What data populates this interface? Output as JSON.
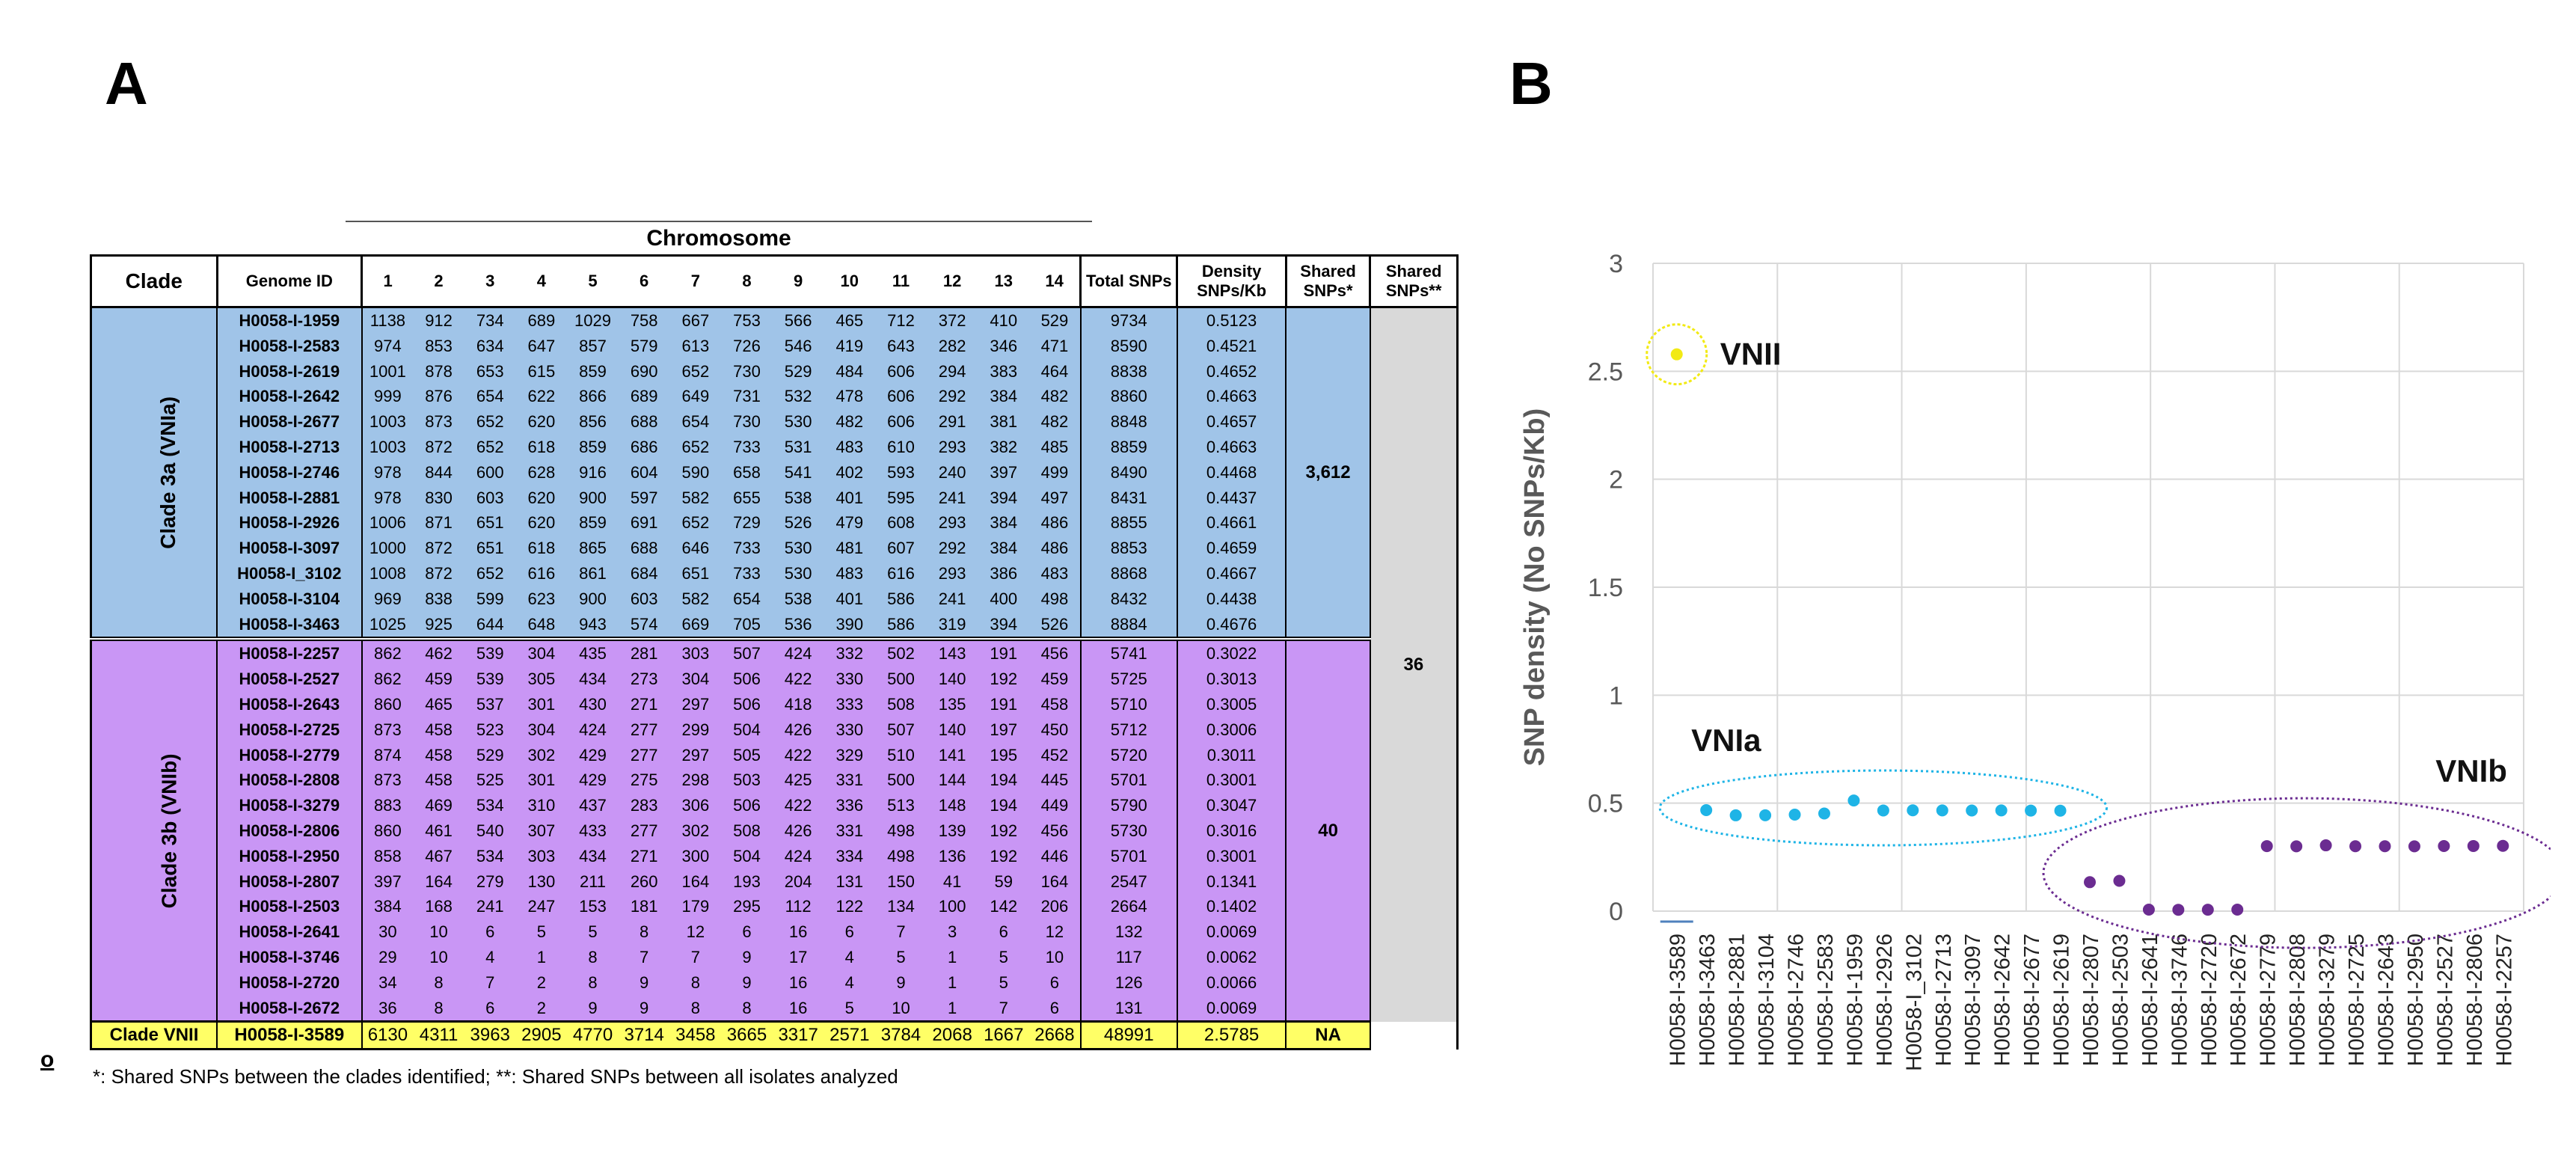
{
  "panels": {
    "a_label": "A",
    "b_label": "B",
    "stray_mark": "o"
  },
  "table": {
    "chromosome_title": "Chromosome",
    "headers": {
      "clade": "Clade",
      "genome_id": "Genome ID",
      "chromosomes": [
        "1",
        "2",
        "3",
        "4",
        "5",
        "6",
        "7",
        "8",
        "9",
        "10",
        "11",
        "12",
        "13",
        "14"
      ],
      "total": "Total SNPs",
      "density_1": "Density",
      "density_2": "SNPs/Kb",
      "shared_clade_1": "Shared",
      "shared_clade_2": "SNPs*",
      "shared_all_1": "Shared",
      "shared_all_2": "SNPs**"
    },
    "clade_a": {
      "name": "Clade 3a (VNIa)",
      "shared": "3,612",
      "rows": [
        {
          "id": "H0058-I-1959",
          "c": [
            "1138",
            "912",
            "734",
            "689",
            "1029",
            "758",
            "667",
            "753",
            "566",
            "465",
            "712",
            "372",
            "410",
            "529"
          ],
          "total": "9734",
          "density": "0.5123"
        },
        {
          "id": "H0058-I-2583",
          "c": [
            "974",
            "853",
            "634",
            "647",
            "857",
            "579",
            "613",
            "726",
            "546",
            "419",
            "643",
            "282",
            "346",
            "471"
          ],
          "total": "8590",
          "density": "0.4521"
        },
        {
          "id": "H0058-I-2619",
          "c": [
            "1001",
            "878",
            "653",
            "615",
            "859",
            "690",
            "652",
            "730",
            "529",
            "484",
            "606",
            "294",
            "383",
            "464"
          ],
          "total": "8838",
          "density": "0.4652"
        },
        {
          "id": "H0058-I-2642",
          "c": [
            "999",
            "876",
            "654",
            "622",
            "866",
            "689",
            "649",
            "731",
            "532",
            "478",
            "606",
            "292",
            "384",
            "482"
          ],
          "total": "8860",
          "density": "0.4663"
        },
        {
          "id": "H0058-I-2677",
          "c": [
            "1003",
            "873",
            "652",
            "620",
            "856",
            "688",
            "654",
            "730",
            "530",
            "482",
            "606",
            "291",
            "381",
            "482"
          ],
          "total": "8848",
          "density": "0.4657"
        },
        {
          "id": "H0058-I-2713",
          "c": [
            "1003",
            "872",
            "652",
            "618",
            "859",
            "686",
            "652",
            "733",
            "531",
            "483",
            "610",
            "293",
            "382",
            "485"
          ],
          "total": "8859",
          "density": "0.4663"
        },
        {
          "id": "H0058-I-2746",
          "c": [
            "978",
            "844",
            "600",
            "628",
            "916",
            "604",
            "590",
            "658",
            "541",
            "402",
            "593",
            "240",
            "397",
            "499"
          ],
          "total": "8490",
          "density": "0.4468"
        },
        {
          "id": "H0058-I-2881",
          "c": [
            "978",
            "830",
            "603",
            "620",
            "900",
            "597",
            "582",
            "655",
            "538",
            "401",
            "595",
            "241",
            "394",
            "497"
          ],
          "total": "8431",
          "density": "0.4437"
        },
        {
          "id": "H0058-I-2926",
          "c": [
            "1006",
            "871",
            "651",
            "620",
            "859",
            "691",
            "652",
            "729",
            "526",
            "479",
            "608",
            "293",
            "384",
            "486"
          ],
          "total": "8855",
          "density": "0.4661"
        },
        {
          "id": "H0058-I-3097",
          "c": [
            "1000",
            "872",
            "651",
            "618",
            "865",
            "688",
            "646",
            "733",
            "530",
            "481",
            "607",
            "292",
            "384",
            "486"
          ],
          "total": "8853",
          "density": "0.4659"
        },
        {
          "id": "H0058-I_3102",
          "c": [
            "1008",
            "872",
            "652",
            "616",
            "861",
            "684",
            "651",
            "733",
            "530",
            "483",
            "616",
            "293",
            "386",
            "483"
          ],
          "total": "8868",
          "density": "0.4667"
        },
        {
          "id": "H0058-I-3104",
          "c": [
            "969",
            "838",
            "599",
            "623",
            "900",
            "603",
            "582",
            "654",
            "538",
            "401",
            "586",
            "241",
            "400",
            "498"
          ],
          "total": "8432",
          "density": "0.4438"
        },
        {
          "id": "H0058-I-3463",
          "c": [
            "1025",
            "925",
            "644",
            "648",
            "943",
            "574",
            "669",
            "705",
            "536",
            "390",
            "586",
            "319",
            "394",
            "526"
          ],
          "total": "8884",
          "density": "0.4676"
        }
      ]
    },
    "clade_b": {
      "name": "Clade 3b (VNIb)",
      "shared": "40",
      "rows": [
        {
          "id": "H0058-I-2257",
          "c": [
            "862",
            "462",
            "539",
            "304",
            "435",
            "281",
            "303",
            "507",
            "424",
            "332",
            "502",
            "143",
            "191",
            "456"
          ],
          "total": "5741",
          "density": "0.3022"
        },
        {
          "id": "H0058-I-2527",
          "c": [
            "862",
            "459",
            "539",
            "305",
            "434",
            "273",
            "304",
            "506",
            "422",
            "330",
            "500",
            "140",
            "192",
            "459"
          ],
          "total": "5725",
          "density": "0.3013"
        },
        {
          "id": "H0058-I-2643",
          "c": [
            "860",
            "465",
            "537",
            "301",
            "430",
            "271",
            "297",
            "506",
            "418",
            "333",
            "508",
            "135",
            "191",
            "458"
          ],
          "total": "5710",
          "density": "0.3005"
        },
        {
          "id": "H0058-I-2725",
          "c": [
            "873",
            "458",
            "523",
            "304",
            "424",
            "277",
            "299",
            "504",
            "426",
            "330",
            "507",
            "140",
            "197",
            "450"
          ],
          "total": "5712",
          "density": "0.3006"
        },
        {
          "id": "H0058-I-2779",
          "c": [
            "874",
            "458",
            "529",
            "302",
            "429",
            "277",
            "297",
            "505",
            "422",
            "329",
            "510",
            "141",
            "195",
            "452"
          ],
          "total": "5720",
          "density": "0.3011"
        },
        {
          "id": "H0058-I-2808",
          "c": [
            "873",
            "458",
            "525",
            "301",
            "429",
            "275",
            "298",
            "503",
            "425",
            "331",
            "500",
            "144",
            "194",
            "445"
          ],
          "total": "5701",
          "density": "0.3001"
        },
        {
          "id": "H0058-I-3279",
          "c": [
            "883",
            "469",
            "534",
            "310",
            "437",
            "283",
            "306",
            "506",
            "422",
            "336",
            "513",
            "148",
            "194",
            "449"
          ],
          "total": "5790",
          "density": "0.3047"
        },
        {
          "id": "H0058-I-2806",
          "c": [
            "860",
            "461",
            "540",
            "307",
            "433",
            "277",
            "302",
            "508",
            "426",
            "331",
            "498",
            "139",
            "192",
            "456"
          ],
          "total": "5730",
          "density": "0.3016"
        },
        {
          "id": "H0058-I-2950",
          "c": [
            "858",
            "467",
            "534",
            "303",
            "434",
            "271",
            "300",
            "504",
            "424",
            "334",
            "498",
            "136",
            "192",
            "446"
          ],
          "total": "5701",
          "density": "0.3001"
        },
        {
          "id": "H0058-I-2807",
          "c": [
            "397",
            "164",
            "279",
            "130",
            "211",
            "260",
            "164",
            "193",
            "204",
            "131",
            "150",
            "41",
            "59",
            "164"
          ],
          "total": "2547",
          "density": "0.1341"
        },
        {
          "id": "H0058-I-2503",
          "c": [
            "384",
            "168",
            "241",
            "247",
            "153",
            "181",
            "179",
            "295",
            "112",
            "122",
            "134",
            "100",
            "142",
            "206"
          ],
          "total": "2664",
          "density": "0.1402"
        },
        {
          "id": "H0058-I-2641",
          "c": [
            "30",
            "10",
            "6",
            "5",
            "5",
            "8",
            "12",
            "6",
            "16",
            "6",
            "7",
            "3",
            "6",
            "12"
          ],
          "total": "132",
          "density": "0.0069"
        },
        {
          "id": "H0058-I-3746",
          "c": [
            "29",
            "10",
            "4",
            "1",
            "8",
            "7",
            "7",
            "9",
            "17",
            "4",
            "5",
            "1",
            "5",
            "10"
          ],
          "total": "117",
          "density": "0.0062"
        },
        {
          "id": "H0058-I-2720",
          "c": [
            "34",
            "8",
            "7",
            "2",
            "8",
            "9",
            "8",
            "9",
            "16",
            "4",
            "9",
            "1",
            "5",
            "6"
          ],
          "total": "126",
          "density": "0.0066"
        },
        {
          "id": "H0058-I-2672",
          "c": [
            "36",
            "8",
            "6",
            "2",
            "9",
            "9",
            "8",
            "8",
            "16",
            "5",
            "10",
            "1",
            "7",
            "6"
          ],
          "total": "131",
          "density": "0.0069"
        }
      ]
    },
    "clade_c": {
      "name": "Clade VNII",
      "row": {
        "id": "H0058-I-3589",
        "c": [
          "6130",
          "4311",
          "3963",
          "2905",
          "4770",
          "3714",
          "3458",
          "3665",
          "3317",
          "2571",
          "3784",
          "2068",
          "1667",
          "2668"
        ],
        "total": "48991",
        "density": "2.5785"
      },
      "shared": "NA"
    },
    "shared_all": "36",
    "footnote": "*: Shared SNPs between the clades identified; **: Shared SNPs between all isolates analyzed"
  },
  "chart_data": {
    "type": "scatter",
    "ylabel": "SNP density (No SNPs/Kb)",
    "xlabel": "",
    "ylim": [
      0,
      3
    ],
    "yticks": [
      "0",
      "0.5",
      "1",
      "1.5",
      "2",
      "2.5",
      "3"
    ],
    "grid": true,
    "categories": [
      "H0058-I-3589",
      "H0058-I-3463",
      "H0058-I-2881",
      "H0058-I-3104",
      "H0058-I-2746",
      "H0058-I-2583",
      "H0058-I-1959",
      "H0058-I-2926",
      "H0058-I_3102",
      "H0058-I-2713",
      "H0058-I-3097",
      "H0058-I-2642",
      "H0058-I-2677",
      "H0058-I-2619",
      "H0058-I-2807",
      "H0058-I-2503",
      "H0058-I-2641",
      "H0058-I-3746",
      "H0058-I-2720",
      "H0058-I-2672",
      "H0058-I-2779",
      "H0058-I-2808",
      "H0058-I-3279",
      "H0058-I-2725",
      "H0058-I-2643",
      "H0058-I-2950",
      "H0058-I-2527",
      "H0058-I-2806",
      "H0058-I-2257"
    ],
    "values": [
      2.5785,
      0.4676,
      0.4437,
      0.4438,
      0.4468,
      0.4521,
      0.5123,
      0.4661,
      0.4667,
      0.4663,
      0.4659,
      0.4663,
      0.4657,
      0.4652,
      0.1341,
      0.1402,
      0.0069,
      0.0062,
      0.0066,
      0.0069,
      0.3011,
      0.3001,
      0.3047,
      0.3006,
      0.3005,
      0.3001,
      0.3013,
      0.3016,
      0.3022
    ],
    "groups": [
      {
        "label": "VNII",
        "start": 0,
        "end": 0,
        "color": "#f2ea14"
      },
      {
        "label": "VNIa",
        "start": 1,
        "end": 13,
        "color": "#1eb4e6"
      },
      {
        "label": "VNIb",
        "start": 14,
        "end": 28,
        "color": "#6b2c91"
      }
    ]
  }
}
